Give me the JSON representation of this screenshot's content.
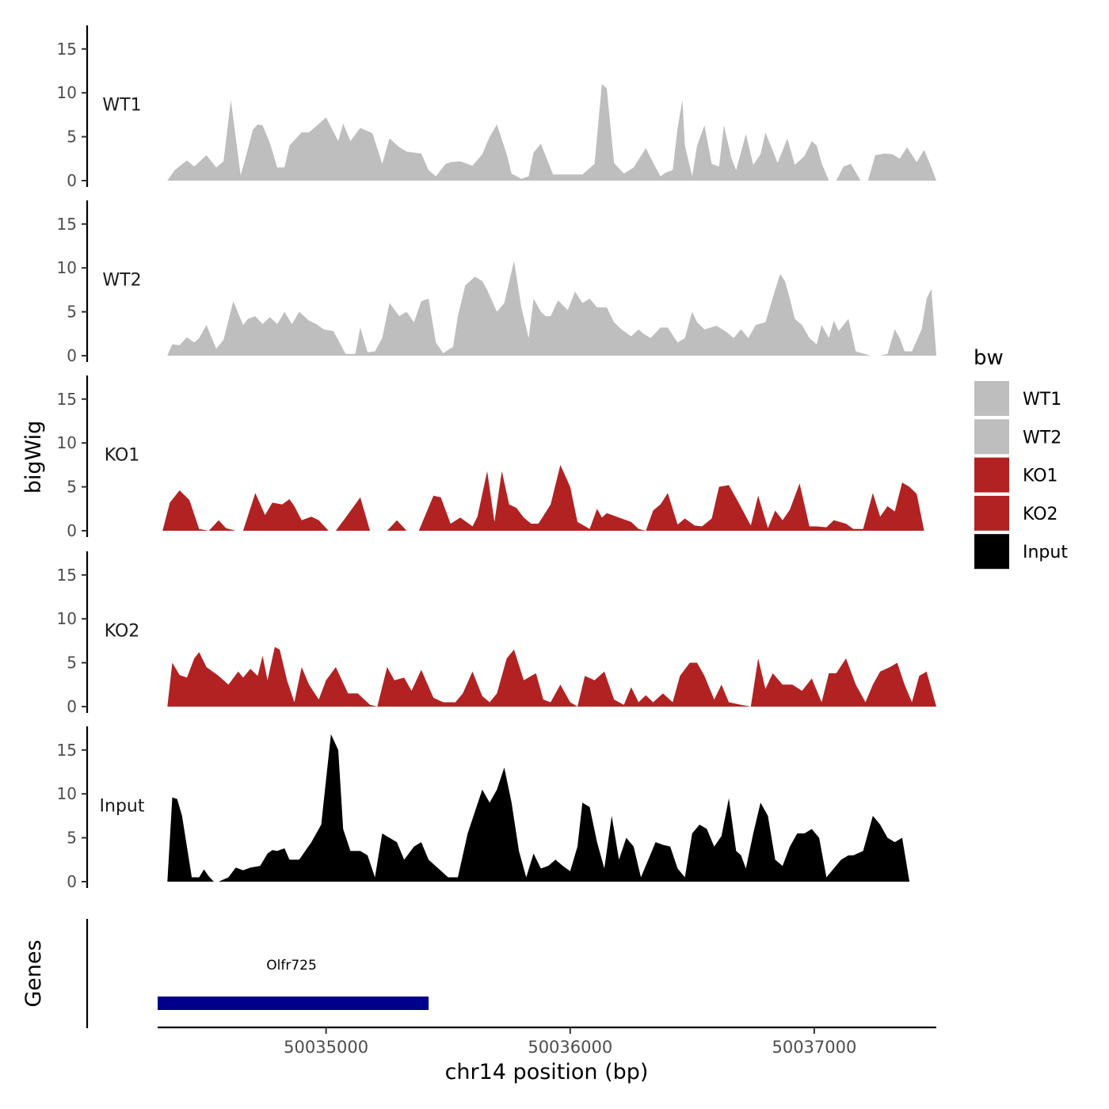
{
  "chart_data": {
    "type": "area",
    "y_axis_title": "bigWig",
    "x_axis_title": "chr14 position (bp)",
    "genes_panel_title": "Genes",
    "x_range": [
      50034310,
      50037500
    ],
    "x_ticks": [
      50035000,
      50036000,
      50037000
    ],
    "x_tick_labels": [
      "50035000",
      "50036000",
      "50037000"
    ],
    "y_range": [
      0,
      18
    ],
    "y_ticks": [
      0,
      5,
      10,
      15
    ],
    "y_tick_labels": [
      "0",
      "5",
      "10",
      "15"
    ],
    "legend": {
      "title": "bw",
      "position": "right",
      "entries": [
        {
          "label": "WT1",
          "color": "#BEBEBE"
        },
        {
          "label": "WT2",
          "color": "#BEBEBE"
        },
        {
          "label": "KO1",
          "color": "#B22222"
        },
        {
          "label": "KO2",
          "color": "#B22222"
        },
        {
          "label": "Input",
          "color": "#000000"
        }
      ]
    },
    "series": [
      {
        "name": "WT1",
        "color": "#BEBEBE",
        "x": [
          50034350,
          50034380,
          50034430,
          50034460,
          50034510,
          50034550,
          50034580,
          50034610,
          50034650,
          50034670,
          50034700,
          50034720,
          50034740,
          50034770,
          50034800,
          50034830,
          50034850,
          50034900,
          50034930,
          50035000,
          50035050,
          50035070,
          50035100,
          50035140,
          50035190,
          50035230,
          50035260,
          50035300,
          50035330,
          50035390,
          50035420,
          50035450,
          50035490,
          50035510,
          50035550,
          50035600,
          50035640,
          50035670,
          50035700,
          50035740,
          50035760,
          50035800,
          50035830,
          50035850,
          50035880,
          50035930,
          50035960,
          50036000,
          50036050,
          50036100,
          50036130,
          50036150,
          50036180,
          50036220,
          50036260,
          50036310,
          50036350,
          50036370,
          50036390,
          50036420,
          50036440,
          50036460,
          50036470,
          50036500,
          50036520,
          50036550,
          50036580,
          50036610,
          50036630,
          50036660,
          50036680,
          50036720,
          50036750,
          50036780,
          50036800,
          50036850,
          50036890,
          50036920,
          50036960,
          50036990,
          50037010,
          50037030,
          50037060,
          50037090,
          50037120,
          50037150,
          50037190,
          50037220,
          50037250,
          50037290,
          50037320,
          50037350,
          50037380,
          50037420,
          50037450,
          50037480,
          50037500
        ],
        "y": [
          0,
          1.2,
          2.3,
          1.6,
          2.9,
          1.5,
          2.2,
          9.2,
          0.6,
          2.6,
          5.8,
          6.4,
          6.3,
          4.3,
          1.5,
          1.5,
          4.0,
          5.5,
          5.5,
          7.2,
          4.5,
          6.5,
          4.5,
          6.0,
          5.4,
          1.9,
          4.8,
          3.8,
          3.3,
          3.1,
          1.2,
          0.5,
          1.9,
          2.1,
          2.2,
          1.7,
          3.0,
          5.0,
          6.4,
          3.0,
          0.8,
          0.2,
          0.5,
          3.2,
          4.2,
          0.7,
          0.7,
          0.7,
          0.7,
          1.9,
          11.0,
          10.5,
          2.0,
          0.8,
          1.5,
          3.7,
          1.5,
          0.5,
          0.9,
          1.2,
          6.0,
          9.2,
          4.0,
          0.5,
          4.0,
          6.3,
          1.9,
          1.6,
          6.3,
          2.6,
          1.2,
          5.3,
          1.8,
          3.0,
          5.5,
          2.0,
          4.8,
          1.8,
          2.8,
          4.5,
          4.0,
          2.0,
          0,
          0,
          1.6,
          1.9,
          0,
          0,
          2.9,
          3.1,
          3.0,
          2.5,
          3.8,
          2.1,
          3.5,
          1.5,
          0
        ]
      },
      {
        "name": "WT2",
        "color": "#BEBEBE",
        "x": [
          50034350,
          50034370,
          50034400,
          50034430,
          50034460,
          50034480,
          50034510,
          50034550,
          50034580,
          50034620,
          50034660,
          50034680,
          50034710,
          50034740,
          50034770,
          50034800,
          50034830,
          50034860,
          50034890,
          50034930,
          50034960,
          50034990,
          50035030,
          50035080,
          50035120,
          50035140,
          50035170,
          50035200,
          50035230,
          50035260,
          50035300,
          50035330,
          50035360,
          50035390,
          50035420,
          50035450,
          50035480,
          50035520,
          50035540,
          50035570,
          50035610,
          50035640,
          50035660,
          50035700,
          50035730,
          50035770,
          50035800,
          50035830,
          50035850,
          50035880,
          50035900,
          50035920,
          50035950,
          50035990,
          50036020,
          50036050,
          50036080,
          50036110,
          50036150,
          50036180,
          50036210,
          50036250,
          50036280,
          50036300,
          50036330,
          50036370,
          50036400,
          50036440,
          50036470,
          50036500,
          50036520,
          50036550,
          50036600,
          50036640,
          50036670,
          50036700,
          50036730,
          50036760,
          50036800,
          50036840,
          50036860,
          50036880,
          50036900,
          50036920,
          50036950,
          50036980,
          50037010,
          50037030,
          50037060,
          50037080,
          50037100,
          50037140,
          50037170,
          50037230,
          50037270,
          50037300,
          50037330,
          50037350,
          50037370,
          50037400,
          50037440,
          50037460,
          50037480,
          50037500
        ],
        "y": [
          0,
          1.3,
          1.2,
          2.1,
          1.5,
          2.0,
          3.5,
          0.8,
          1.8,
          6.2,
          3.5,
          4.2,
          4.5,
          3.6,
          4.4,
          3.6,
          5.0,
          3.6,
          5.0,
          4.0,
          3.6,
          3.0,
          2.8,
          0.2,
          0.2,
          3.2,
          0.4,
          0.5,
          2.0,
          6.0,
          4.5,
          5.0,
          3.8,
          6.2,
          6.5,
          1.5,
          0.3,
          1.0,
          4.5,
          8.0,
          9.0,
          8.5,
          7.5,
          5.0,
          6.0,
          10.8,
          5.5,
          2.0,
          6.5,
          5.0,
          4.5,
          4.5,
          6.3,
          5.2,
          7.3,
          6.0,
          6.5,
          5.5,
          5.5,
          3.8,
          3.0,
          2.2,
          3.0,
          2.5,
          2.0,
          3.2,
          3.2,
          1.5,
          2.0,
          5.0,
          3.8,
          3.0,
          3.4,
          2.7,
          2.0,
          3.0,
          2.0,
          3.5,
          3.8,
          7.5,
          9.3,
          8.5,
          6.5,
          4.2,
          3.5,
          2.0,
          1.3,
          3.5,
          2.0,
          4.0,
          2.8,
          4.2,
          0.5,
          0,
          0,
          0.2,
          3.0,
          2.0,
          0.5,
          0.5,
          3.0,
          6.5,
          7.6,
          0
        ]
      },
      {
        "name": "KO1",
        "color": "#B22222",
        "x": [
          50034330,
          50034360,
          50034400,
          50034440,
          50034480,
          50034520,
          50034560,
          50034590,
          50034630,
          50034660,
          50034710,
          50034750,
          50034780,
          50034820,
          50034850,
          50034870,
          50034900,
          50034940,
          50034970,
          50035010,
          50035040,
          50035080,
          50035140,
          50035180,
          50035220,
          50035250,
          50035290,
          50035330,
          50035350,
          50035380,
          50035440,
          50035470,
          50035510,
          50035550,
          50035600,
          50035620,
          50035660,
          50035690,
          50035720,
          50035750,
          50035780,
          50035810,
          50035840,
          50035870,
          50035920,
          50035960,
          50036000,
          50036030,
          50036080,
          50036110,
          50036130,
          50036150,
          50036200,
          50036250,
          50036280,
          50036310,
          50036340,
          50036370,
          50036400,
          50036440,
          50036470,
          50036510,
          50036540,
          50036580,
          50036610,
          50036650,
          50036690,
          50036740,
          50036770,
          50036810,
          50036840,
          50036870,
          50036900,
          50036940,
          50036980,
          50037010,
          50037050,
          50037080,
          50037130,
          50037160,
          50037200,
          50037240,
          50037270,
          50037300,
          50037330,
          50037360,
          50037390,
          50037420,
          50037450,
          50037470,
          50037500
        ],
        "y": [
          0,
          3.2,
          4.6,
          3.5,
          0.2,
          0,
          1.2,
          0.3,
          0,
          0,
          4.3,
          1.8,
          3.2,
          3.0,
          3.6,
          2.8,
          1.2,
          1.6,
          1.2,
          0,
          0,
          1.5,
          3.8,
          0,
          0,
          0,
          1.2,
          0,
          0,
          0,
          4.0,
          3.8,
          0.8,
          1.5,
          0.5,
          1.6,
          6.8,
          1.0,
          6.8,
          3.0,
          2.6,
          1.5,
          0.8,
          0.8,
          3.0,
          7.5,
          5.0,
          1.0,
          0.2,
          2.5,
          1.5,
          2.0,
          1.5,
          1.0,
          0.2,
          0,
          2.3,
          3.0,
          4.3,
          0.7,
          1.4,
          0.6,
          0.5,
          1.4,
          5.0,
          5.2,
          3.2,
          0.6,
          4.0,
          0.3,
          2.3,
          1.2,
          2.4,
          5.4,
          0.5,
          0.5,
          0.4,
          1.2,
          0.8,
          0.2,
          0.2,
          4.3,
          1.6,
          2.8,
          2.2,
          5.5,
          5.0,
          4.2,
          0,
          0,
          0
        ]
      },
      {
        "name": "KO2",
        "color": "#B22222",
        "x": [
          50034350,
          50034370,
          50034400,
          50034430,
          50034460,
          50034480,
          50034510,
          50034560,
          50034600,
          50034640,
          50034660,
          50034690,
          50034720,
          50034740,
          50034760,
          50034790,
          50034810,
          50034840,
          50034870,
          50034900,
          50034930,
          50034970,
          50035000,
          50035040,
          50035090,
          50035130,
          50035180,
          50035210,
          50035250,
          50035280,
          50035320,
          50035350,
          50035390,
          50035440,
          50035480,
          50035530,
          50035560,
          50035600,
          50035640,
          50035670,
          50035700,
          50035740,
          50035770,
          50035810,
          50035860,
          50035890,
          50035920,
          50035960,
          50036000,
          50036030,
          50036060,
          50036100,
          50036140,
          50036180,
          50036220,
          50036250,
          50036280,
          50036310,
          50036340,
          50036380,
          50036420,
          50036450,
          50036490,
          50036520,
          50036550,
          50036590,
          50036620,
          50036650,
          50036700,
          50036740,
          50036770,
          50036800,
          50036830,
          50036870,
          50036910,
          50036950,
          50036990,
          50037030,
          50037060,
          50037090,
          50037130,
          50037170,
          50037210,
          50037240,
          50037270,
          50037310,
          50037340,
          50037370,
          50037400,
          50037430,
          50037460,
          50037500
        ],
        "y": [
          0,
          5.0,
          3.6,
          3.3,
          5.5,
          6.2,
          4.5,
          3.5,
          2.5,
          4.0,
          3.3,
          4.3,
          3.5,
          5.8,
          3.0,
          6.8,
          6.5,
          3.0,
          0.5,
          4.5,
          2.5,
          0.8,
          3.0,
          4.5,
          1.5,
          1.5,
          0.2,
          0,
          4.5,
          3.0,
          3.3,
          1.8,
          4.2,
          1.0,
          0.5,
          0.5,
          1.5,
          4.0,
          1.2,
          0.5,
          1.5,
          5.5,
          6.5,
          3.0,
          3.8,
          0.8,
          0.5,
          2.5,
          0.5,
          0,
          3.5,
          3.0,
          4.0,
          0.8,
          0.2,
          2.2,
          0.5,
          1.3,
          0.5,
          1.5,
          0.5,
          3.5,
          5.0,
          5.0,
          3.5,
          0.8,
          2.5,
          0.5,
          0.2,
          0,
          5.5,
          2.0,
          3.8,
          2.5,
          2.5,
          1.8,
          3.2,
          0.5,
          3.8,
          3.8,
          5.5,
          2.5,
          0.5,
          2.5,
          4.0,
          4.5,
          5.0,
          2.5,
          0.5,
          3.5,
          4.0,
          0
        ]
      },
      {
        "name": "Input",
        "color": "#000000",
        "x": [
          50034350,
          50034370,
          50034390,
          50034410,
          50034450,
          50034480,
          50034500,
          50034520,
          50034540,
          50034560,
          50034600,
          50034630,
          50034660,
          50034690,
          50034730,
          50034760,
          50034780,
          50034800,
          50034830,
          50034850,
          50034890,
          50034940,
          50034980,
          50035020,
          50035050,
          50035070,
          50035100,
          50035140,
          50035170,
          50035200,
          50035230,
          50035260,
          50035290,
          50035320,
          50035360,
          50035390,
          50035420,
          50035460,
          50035500,
          50035540,
          50035580,
          50035610,
          50035640,
          50035670,
          50035700,
          50035730,
          50035760,
          50035790,
          50035820,
          50035850,
          50035880,
          50035910,
          50035940,
          50035970,
          50036000,
          50036030,
          50036050,
          50036080,
          50036110,
          50036140,
          50036170,
          50036200,
          50036230,
          50036260,
          50036290,
          50036320,
          50036350,
          50036380,
          50036410,
          50036440,
          50036470,
          50036500,
          50036530,
          50036560,
          50036590,
          50036620,
          50036650,
          50036680,
          50036700,
          50036720,
          50036750,
          50036780,
          50036810,
          50036840,
          50036870,
          50036900,
          50036930,
          50036960,
          50036990,
          50037020,
          50037050,
          50037080,
          50037110,
          50037140,
          50037160,
          50037200,
          50037240,
          50037270,
          50037300,
          50037330,
          50037360,
          50037390,
          50037420,
          50037450,
          50037480,
          50037500
        ],
        "y": [
          0,
          9.6,
          9.4,
          7.5,
          0.5,
          0.5,
          1.4,
          0.6,
          0,
          0,
          0.5,
          1.6,
          1.3,
          1.6,
          1.8,
          3.2,
          3.6,
          3.5,
          3.8,
          2.5,
          2.5,
          4.5,
          6.5,
          16.8,
          15.0,
          6.0,
          3.5,
          3.5,
          3.0,
          0.5,
          5.5,
          5.0,
          4.5,
          2.5,
          4.0,
          4.5,
          2.5,
          1.5,
          0.5,
          0.5,
          5.5,
          8.0,
          10.5,
          9.0,
          10.5,
          13.0,
          9.0,
          3.5,
          0.5,
          3.2,
          1.5,
          1.8,
          2.5,
          1.8,
          1.2,
          4.0,
          9.0,
          8.5,
          4.5,
          1.5,
          7.5,
          2.5,
          5.0,
          4.0,
          0.5,
          2.5,
          4.5,
          4.2,
          4.0,
          1.5,
          0.5,
          5.5,
          6.5,
          6.0,
          4.0,
          5.2,
          9.5,
          3.5,
          3.0,
          1.5,
          5.5,
          9.0,
          7.5,
          2.5,
          1.8,
          4.0,
          5.5,
          5.5,
          6.0,
          5.0,
          0.5,
          1.5,
          2.5,
          3.0,
          3.0,
          3.5,
          7.5,
          6.5,
          5.0,
          4.5,
          5.0,
          0,
          0,
          0,
          0,
          0
        ]
      }
    ],
    "genes": [
      {
        "name": "Olfr725",
        "start": 50034310,
        "end": 50035420,
        "color": "#00008B"
      }
    ]
  }
}
